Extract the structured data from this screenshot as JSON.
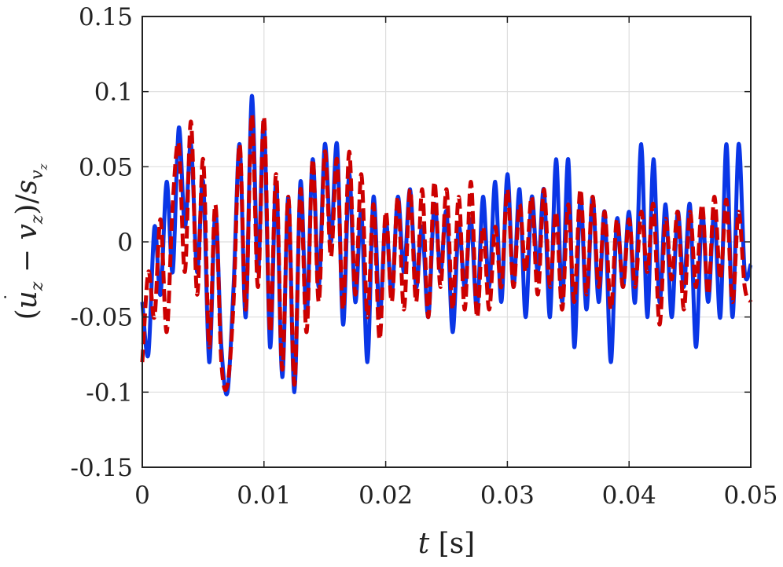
{
  "chart_data": {
    "type": "line",
    "xlabel": "t [s]",
    "ylabel": "(u̇z − vz)/svz",
    "xlim": [
      0,
      0.05
    ],
    "ylim": [
      -0.15,
      0.15
    ],
    "xticks": [
      0,
      0.01,
      0.02,
      0.03,
      0.04,
      0.05
    ],
    "xtick_labels": [
      "0",
      "0.01",
      "0.02",
      "0.03",
      "0.04",
      "0.05"
    ],
    "yticks": [
      0.15,
      0.1,
      0.05,
      0,
      -0.05,
      -0.1,
      -0.15
    ],
    "ytick_labels": [
      "0.15",
      "0.1",
      "0.05",
      "0",
      "-0.05",
      "-0.1",
      "-0.15"
    ],
    "grid": true,
    "series": [
      {
        "style": "solid",
        "color": "#0a36e6",
        "x": [
          0,
          0.0005,
          0.001,
          0.0015,
          0.002,
          0.0025,
          0.003,
          0.0035,
          0.004,
          0.0045,
          0.005,
          0.0055,
          0.006,
          0.0065,
          0.007,
          0.0075,
          0.008,
          0.0085,
          0.009,
          0.0095,
          0.01,
          0.0105,
          0.011,
          0.0115,
          0.012,
          0.0125,
          0.013,
          0.0135,
          0.014,
          0.0145,
          0.015,
          0.0155,
          0.016,
          0.0165,
          0.017,
          0.0175,
          0.018,
          0.0185,
          0.019,
          0.0195,
          0.02,
          0.0205,
          0.021,
          0.0215,
          0.022,
          0.0225,
          0.023,
          0.0235,
          0.024,
          0.0245,
          0.025,
          0.0255,
          0.026,
          0.0265,
          0.027,
          0.0275,
          0.028,
          0.0285,
          0.029,
          0.0295,
          0.03,
          0.0305,
          0.031,
          0.0315,
          0.032,
          0.0325,
          0.033,
          0.0335,
          0.034,
          0.0345,
          0.035,
          0.0355,
          0.036,
          0.0365,
          0.037,
          0.0375,
          0.038,
          0.0385,
          0.039,
          0.0395,
          0.04,
          0.0405,
          0.041,
          0.0415,
          0.042,
          0.0425,
          0.043,
          0.0435,
          0.044,
          0.0445,
          0.045,
          0.0455,
          0.046,
          0.0465,
          0.047,
          0.0475,
          0.048,
          0.0485,
          0.049,
          0.0495,
          0.05
        ],
        "y": [
          -0.04,
          -0.075,
          0.01,
          -0.035,
          0.04,
          -0.02,
          0.076,
          0.01,
          0.065,
          -0.02,
          0.04,
          -0.08,
          0.02,
          -0.07,
          -0.1,
          -0.03,
          0.065,
          -0.05,
          0.097,
          -0.02,
          0.08,
          -0.07,
          0.04,
          -0.09,
          0.03,
          -0.1,
          0.04,
          -0.05,
          0.055,
          -0.03,
          0.065,
          0.0,
          0.065,
          -0.055,
          0.045,
          -0.04,
          0.02,
          -0.08,
          0.03,
          -0.05,
          0.015,
          -0.035,
          0.03,
          -0.02,
          0.035,
          -0.03,
          0.01,
          -0.05,
          0.025,
          -0.02,
          0.02,
          -0.06,
          0.01,
          -0.03,
          0.015,
          -0.045,
          0.03,
          -0.03,
          0.04,
          -0.04,
          0.045,
          -0.03,
          0.035,
          -0.05,
          0.03,
          -0.02,
          0.035,
          -0.05,
          0.055,
          -0.04,
          0.055,
          -0.07,
          0.03,
          -0.045,
          0.03,
          -0.04,
          0.02,
          -0.08,
          0.015,
          -0.03,
          0.02,
          -0.04,
          0.065,
          -0.05,
          0.055,
          -0.04,
          0.025,
          -0.05,
          0.02,
          -0.03,
          0.025,
          -0.07,
          0.02,
          -0.04,
          0.02,
          -0.05,
          0.065,
          -0.05,
          0.065,
          -0.02,
          -0.015
        ]
      },
      {
        "style": "dashed",
        "color": "#cc0000",
        "x": [
          0,
          0.0005,
          0.001,
          0.0015,
          0.002,
          0.0025,
          0.003,
          0.0035,
          0.004,
          0.0045,
          0.005,
          0.0055,
          0.006,
          0.0065,
          0.007,
          0.0075,
          0.008,
          0.0085,
          0.009,
          0.0095,
          0.01,
          0.0105,
          0.011,
          0.0115,
          0.012,
          0.0125,
          0.013,
          0.0135,
          0.014,
          0.0145,
          0.015,
          0.0155,
          0.016,
          0.0165,
          0.017,
          0.0175,
          0.018,
          0.0185,
          0.019,
          0.0195,
          0.02,
          0.0205,
          0.021,
          0.0215,
          0.022,
          0.0225,
          0.023,
          0.0235,
          0.024,
          0.0245,
          0.025,
          0.0255,
          0.026,
          0.0265,
          0.027,
          0.0275,
          0.028,
          0.0285,
          0.029,
          0.0295,
          0.03,
          0.0305,
          0.031,
          0.0315,
          0.032,
          0.0325,
          0.033,
          0.0335,
          0.034,
          0.0345,
          0.035,
          0.0355,
          0.036,
          0.0365,
          0.037,
          0.0375,
          0.038,
          0.0385,
          0.039,
          0.0395,
          0.04,
          0.0405,
          0.041,
          0.0415,
          0.042,
          0.0425,
          0.043,
          0.0435,
          0.044,
          0.0445,
          0.045,
          0.0455,
          0.046,
          0.0465,
          0.047,
          0.0475,
          0.048,
          0.0485,
          0.049,
          0.0495,
          0.05
        ],
        "y": [
          -0.08,
          -0.02,
          -0.05,
          0.015,
          -0.06,
          0.025,
          0.065,
          -0.02,
          0.08,
          -0.035,
          0.055,
          -0.07,
          0.025,
          -0.08,
          -0.095,
          -0.04,
          0.065,
          -0.045,
          0.085,
          -0.03,
          0.083,
          -0.06,
          0.045,
          -0.085,
          0.03,
          -0.095,
          0.035,
          -0.06,
          0.055,
          -0.04,
          0.06,
          -0.01,
          0.055,
          -0.045,
          0.06,
          -0.035,
          0.045,
          -0.05,
          0.025,
          -0.065,
          0.02,
          -0.04,
          0.03,
          -0.045,
          0.035,
          -0.04,
          0.035,
          -0.05,
          0.04,
          -0.03,
          0.035,
          -0.045,
          0.03,
          -0.045,
          0.04,
          -0.05,
          0.01,
          -0.045,
          0.01,
          -0.03,
          0.035,
          -0.03,
          0.025,
          -0.02,
          0.03,
          -0.035,
          0.035,
          -0.03,
          0.02,
          -0.045,
          0.025,
          -0.04,
          0.035,
          -0.035,
          0.03,
          -0.03,
          0.02,
          -0.045,
          0.015,
          -0.03,
          0.015,
          -0.03,
          0.02,
          -0.02,
          0.025,
          -0.055,
          0.015,
          -0.025,
          0.02,
          -0.045,
          0.02,
          -0.03,
          0.025,
          -0.035,
          0.03,
          -0.025,
          0.028,
          -0.04,
          0.02,
          -0.03,
          -0.04
        ]
      }
    ]
  }
}
